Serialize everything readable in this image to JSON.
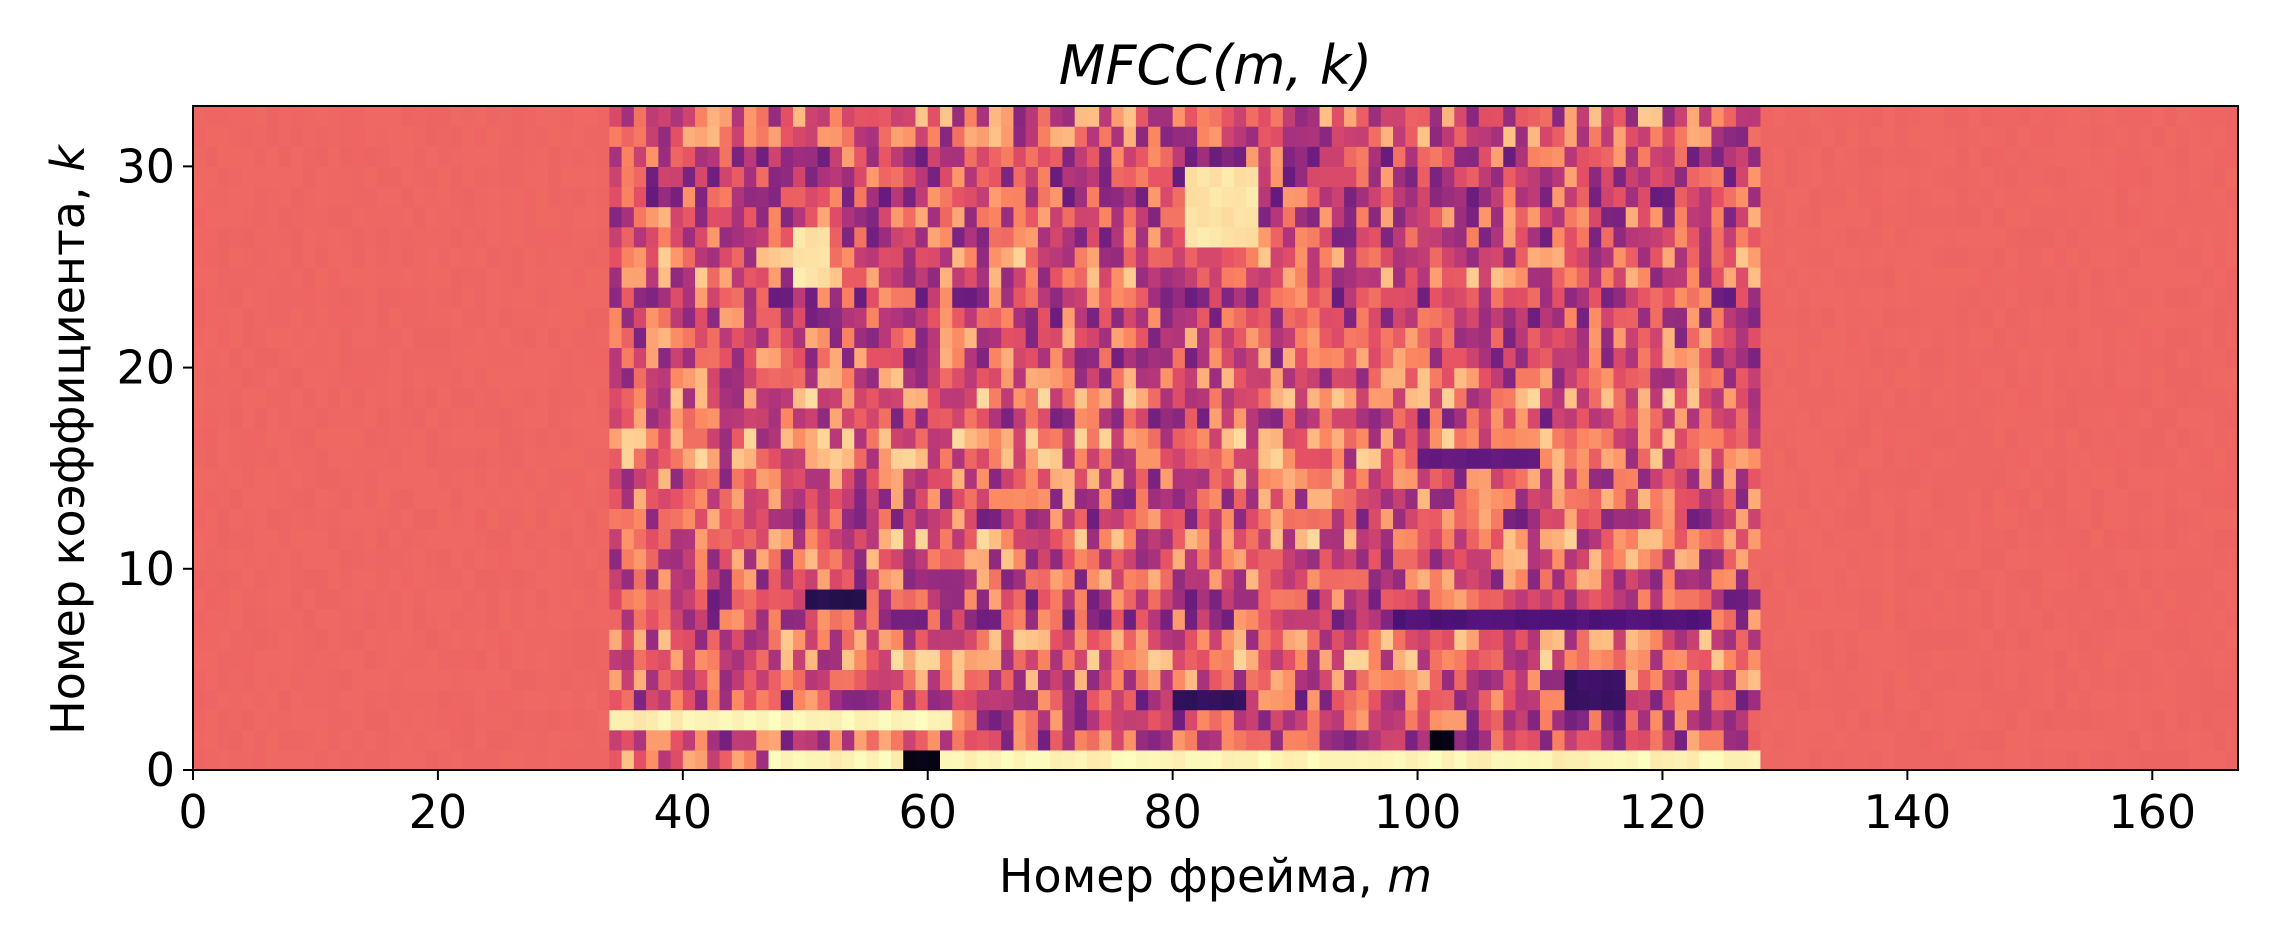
{
  "chart_data": {
    "type": "heatmap",
    "title_text": "MFCC",
    "title_args": "(m, k)",
    "xlabel_text": "Номер фрейма, ",
    "xlabel_var": "m",
    "ylabel_text": "Номер коэффициента, ",
    "ylabel_var": "k",
    "xlim": [
      0,
      167
    ],
    "ylim": [
      0,
      33
    ],
    "xticks": [
      0,
      20,
      40,
      60,
      80,
      100,
      120,
      140,
      160
    ],
    "yticks": [
      0,
      10,
      20,
      30
    ],
    "xtick_labels": [
      "0",
      "20",
      "40",
      "60",
      "80",
      "100",
      "120",
      "140",
      "160"
    ],
    "ytick_labels": [
      "0",
      "10",
      "20",
      "30"
    ],
    "colormap": "magma",
    "n_frames": 167,
    "n_coefficients": 33,
    "silence_value": 0.68,
    "active_frames": [
      34,
      128
    ],
    "notable_regions": [
      {
        "frames": [
          34,
          43
        ],
        "coefficients": [
          2,
          3
        ],
        "value": 0.97
      },
      {
        "frames": [
          43,
          62
        ],
        "coefficients": [
          2,
          3
        ],
        "value": 0.99
      },
      {
        "frames": [
          47,
          128
        ],
        "coefficients": [
          0,
          1
        ],
        "value": 0.98
      },
      {
        "frames": [
          58,
          61
        ],
        "coefficients": [
          0,
          1
        ],
        "value": 0.03
      },
      {
        "frames": [
          101,
          103
        ],
        "coefficients": [
          1,
          2
        ],
        "value": 0.02
      },
      {
        "frames": [
          49,
          52
        ],
        "coefficients": [
          24,
          27
        ],
        "value": 0.95
      },
      {
        "frames": [
          81,
          87
        ],
        "coefficients": [
          26,
          30
        ],
        "value": 0.95
      },
      {
        "frames": [
          80,
          86
        ],
        "coefficients": [
          3,
          4
        ],
        "value": 0.18
      },
      {
        "frames": [
          112,
          117
        ],
        "coefficients": [
          3,
          5
        ],
        "value": 0.2
      },
      {
        "frames": [
          50,
          55
        ],
        "coefficients": [
          8,
          9
        ],
        "value": 0.15
      },
      {
        "frames": [
          98,
          124
        ],
        "coefficients": [
          7,
          8
        ],
        "value": 0.25
      },
      {
        "frames": [
          100,
          110
        ],
        "coefficients": [
          15,
          16
        ],
        "value": 0.3
      }
    ]
  }
}
